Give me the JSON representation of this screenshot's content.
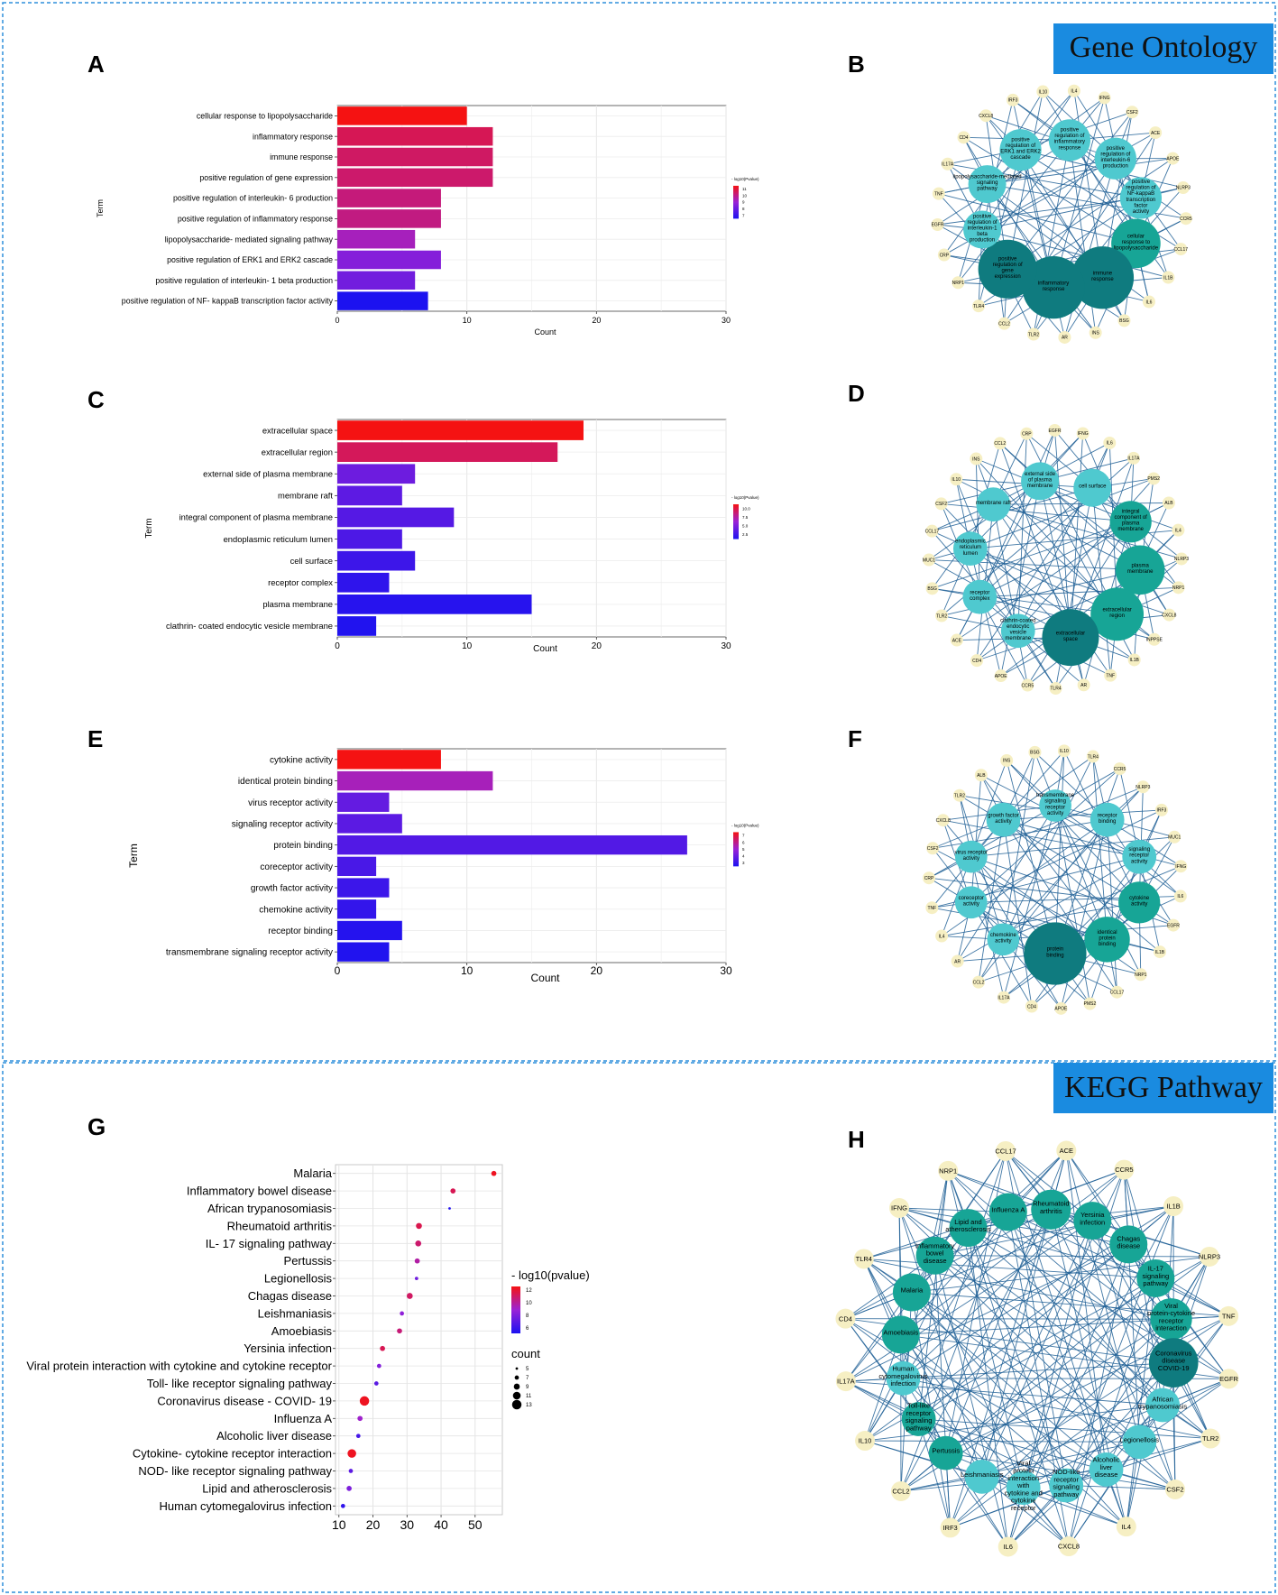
{
  "headers": {
    "go": "Gene Ontology",
    "kegg": "KEGG Pathway"
  },
  "colors": {
    "banner": "#1a8be0",
    "low": "#1c12f0",
    "mid": "#9a22d6",
    "high": "#f51212",
    "gene": "#f6efc3",
    "edge": "#1f5f95",
    "hubDark": "#0f7b7f",
    "hubMid": "#17a596",
    "hubLight": "#4fc9cf"
  },
  "panels": {
    "A": "A",
    "B": "B",
    "C": "C",
    "D": "D",
    "E": "E",
    "F": "F",
    "G": "G",
    "H": "H"
  },
  "chart_data": [
    {
      "id": "A",
      "type": "bar",
      "orientation": "horizontal",
      "xlabel": "Count",
      "ylabel": "Term",
      "xlim": [
        0,
        30
      ],
      "xticks": [
        0,
        10,
        20,
        30
      ],
      "categories": [
        "cellular response to lipopolysaccharide",
        "inflammatory response",
        "immune response",
        "positive regulation of gene expression",
        "positive regulation of interleukin- 6 production",
        "positive regulation of inflammatory response",
        "lipopolysaccharide- mediated signaling pathway",
        "positive regulation of ERK1 and ERK2 cascade",
        "positive regulation of interleukin- 1 beta production",
        "positive regulation of NF- kappaB transcription factor activity"
      ],
      "values": [
        10,
        12,
        12,
        12,
        8,
        8,
        6,
        8,
        6,
        7
      ],
      "neglog10p": [
        11.5,
        10.6,
        10.4,
        10.3,
        10.1,
        10.0,
        9.2,
        8.4,
        8.0,
        6.2
      ],
      "legend": {
        "title": "- log10(Pvalue)",
        "ticks": [
          "11",
          "10",
          "9",
          "8",
          "7"
        ],
        "min": 6.2,
        "max": 11.5
      }
    },
    {
      "id": "C",
      "type": "bar",
      "orientation": "horizontal",
      "xlabel": "Count",
      "ylabel": "Term",
      "xlim": [
        0,
        30
      ],
      "xticks": [
        0,
        10,
        20,
        30
      ],
      "categories": [
        "extracellular space",
        "extracellular region",
        "external side of plasma membrane",
        "membrane raft",
        "integral component of plasma membrane",
        "endoplasmic reticulum lumen",
        "cell surface",
        "receptor complex",
        "plasma membrane",
        "clathrin- coated endocytic vesicle membrane"
      ],
      "values": [
        19,
        17,
        6,
        5,
        9,
        5,
        6,
        4,
        15,
        3
      ],
      "neglog10p": [
        11.5,
        9.8,
        5.2,
        4.6,
        4.3,
        4.0,
        3.4,
        2.9,
        2.6,
        2.4
      ],
      "legend": {
        "title": "- log10(Pvalue)",
        "ticks": [
          "10.0",
          "7.5",
          "5.0",
          "2.5"
        ],
        "min": 2.2,
        "max": 11.5
      }
    },
    {
      "id": "E",
      "type": "bar",
      "orientation": "horizontal",
      "xlabel": "Count",
      "ylabel": "Term",
      "xlim": [
        0,
        30
      ],
      "xticks": [
        0,
        10,
        20,
        30
      ],
      "categories": [
        "cytokine activity",
        "identical protein binding",
        "virus receptor activity",
        "signaling receptor activity",
        "protein binding",
        "coreceptor activity",
        "growth factor activity",
        "chemokine activity",
        "receptor binding",
        "transmembrane signaling receptor activity"
      ],
      "values": [
        8,
        12,
        4,
        5,
        27,
        3,
        4,
        3,
        5,
        4
      ],
      "neglog10p": [
        7.6,
        5.2,
        3.6,
        3.4,
        3.2,
        3.0,
        2.7,
        2.5,
        2.2,
        2.1
      ],
      "legend": {
        "title": "- log10(Pvalue)",
        "ticks": [
          "7",
          "6",
          "5",
          "4",
          "3"
        ],
        "min": 2.0,
        "max": 7.6
      }
    },
    {
      "id": "G",
      "type": "scatter",
      "xlabel": "",
      "ylabel": "",
      "xlim": [
        9,
        58
      ],
      "xticks": [
        10,
        20,
        30,
        40,
        50
      ],
      "categories": [
        "Malaria",
        "Inflammatory bowel disease",
        "African trypanosomiasis",
        "Rheumatoid arthritis",
        "IL- 17 signaling pathway",
        "Pertussis",
        "Legionellosis",
        "Chagas disease",
        "Leishmaniasis",
        "Amoebiasis",
        "Yersinia infection",
        "Viral protein interaction with cytokine and cytokine receptor",
        "Toll- like receptor signaling pathway",
        "Coronavirus disease -  COVID- 19",
        "Influenza A",
        "Alcoholic liver disease",
        "Cytokine- cytokine receptor interaction",
        "NOD- like receptor signaling pathway",
        "Lipid and atherosclerosis",
        "Human cytomegalovirus infection"
      ],
      "x": [
        55.5,
        43.5,
        42.5,
        33.5,
        33.3,
        33.0,
        32.8,
        30.8,
        28.5,
        27.8,
        22.8,
        21.8,
        21.0,
        17.5,
        16.2,
        15.7,
        13.8,
        13.5,
        13.0,
        11.2
      ],
      "neglog10p": [
        12.5,
        11.5,
        5.2,
        11.6,
        11.0,
        9.9,
        7.6,
        11.2,
        8.6,
        10.8,
        11.5,
        8.2,
        6.9,
        12.5,
        9.1,
        6.3,
        12.5,
        7.0,
        8.0,
        5.6
      ],
      "count": [
        8,
        8,
        5,
        9,
        9,
        8,
        6,
        9,
        7,
        8,
        8,
        7,
        7,
        13,
        8,
        7,
        12,
        7,
        8,
        7
      ],
      "legend": {
        "color_title": "- log10(pvalue)",
        "color_ticks": [
          "12",
          "10",
          "8",
          "6"
        ],
        "min": 5.0,
        "max": 12.8,
        "size_title": "count",
        "size_ticks": [
          "5",
          "7",
          "9",
          "11",
          "13"
        ],
        "sizes": [
          5,
          7,
          9,
          11,
          13
        ]
      }
    }
  ],
  "networks": {
    "B": {
      "genes": [
        "IL4",
        "IFNG",
        "CSF2",
        "ACE",
        "APOE",
        "NLRP3",
        "CCR5",
        "CCL17",
        "IL1B",
        "IL6",
        "BSG",
        "INS",
        "AR",
        "TLR2",
        "CCL2",
        "TLR4",
        "NRP1",
        "CRP",
        "EGFR",
        "TNF",
        "IL17A",
        "CD4",
        "CXCL8",
        "IRF3",
        "IL10"
      ],
      "hubs": [
        {
          "label": "positive regulation of ERK1 and ERK2 cascade",
          "tone": "light",
          "size": 22
        },
        {
          "label": "positive regulation of inflammatory response",
          "tone": "light",
          "size": 22
        },
        {
          "label": "positive regulation of interleukin-6 production",
          "tone": "light",
          "size": 22
        },
        {
          "label": "positive regulation of NF-kappaB transcription factor activity",
          "tone": "light",
          "size": 22
        },
        {
          "label": "cellular response to lipopolysaccharide",
          "tone": "mid",
          "size": 26
        },
        {
          "label": "immune response",
          "tone": "dark",
          "size": 33
        },
        {
          "label": "inflammatory response",
          "tone": "dark",
          "size": 33
        },
        {
          "label": "positive regulation of gene expression",
          "tone": "dark",
          "size": 31
        },
        {
          "label": "positive regulation of interleukin-1 beta production",
          "tone": "light",
          "size": 20
        },
        {
          "label": "lipopolysaccharide-mediated signaling pathway",
          "tone": "light",
          "size": 20
        }
      ]
    },
    "D": {
      "genes": [
        "IFNG",
        "IL6",
        "IL17A",
        "PMS2",
        "ALB",
        "IL4",
        "NLRP3",
        "NRP1",
        "CXCL8",
        "INPPSE",
        "IL1B",
        "TNF",
        "AR",
        "TLR4",
        "CCR5",
        "APOE",
        "CD4",
        "ACE",
        "TLR2",
        "BSG",
        "MUC1",
        "CCL17",
        "CSF2",
        "IL10",
        "INS",
        "CCL2",
        "CRP",
        "EGFR"
      ],
      "hubs": [
        {
          "label": "external side of plasma membrane",
          "tone": "light",
          "size": 20
        },
        {
          "label": "cell surface",
          "tone": "light",
          "size": 20
        },
        {
          "label": "integral component of plasma membrane",
          "tone": "mid",
          "size": 22
        },
        {
          "label": "plasma membrane",
          "tone": "mid",
          "size": 26
        },
        {
          "label": "extracellular region",
          "tone": "mid",
          "size": 28
        },
        {
          "label": "extracellular space",
          "tone": "dark",
          "size": 30
        },
        {
          "label": "clathrin-coated endocytic vesicle membrane",
          "tone": "light",
          "size": 18
        },
        {
          "label": "receptor complex",
          "tone": "light",
          "size": 18
        },
        {
          "label": "endoplasmic reticulum lumen",
          "tone": "light",
          "size": 18
        },
        {
          "label": "membrane raft",
          "tone": "light",
          "size": 18
        }
      ]
    },
    "F": {
      "genes": [
        "IL10",
        "TLR4",
        "CCR5",
        "NLRP3",
        "IRF3",
        "MUC1",
        "IFNG",
        "IL6",
        "EGFR",
        "IL1B",
        "NRP1",
        "CCL17",
        "PMS2",
        "APOE",
        "CD4",
        "IL17A",
        "CCL2",
        "AR",
        "IL4",
        "TNF",
        "CRP",
        "CSF2",
        "CXCL8",
        "TLR2",
        "ALB",
        "INS",
        "BSG"
      ],
      "hubs": [
        {
          "label": "transmembrane signaling receptor activity",
          "tone": "light",
          "size": 17
        },
        {
          "label": "receptor binding",
          "tone": "light",
          "size": 18
        },
        {
          "label": "signaling receptor activity",
          "tone": "light",
          "size": 18
        },
        {
          "label": "cytokine activity",
          "tone": "mid",
          "size": 22
        },
        {
          "label": "identical protein binding",
          "tone": "mid",
          "size": 24
        },
        {
          "label": "protein binding",
          "tone": "dark",
          "size": 33
        },
        {
          "label": "chemokine activity",
          "tone": "light",
          "size": 17
        },
        {
          "label": "coreceptor activity",
          "tone": "light",
          "size": 17
        },
        {
          "label": "virus receptor activity",
          "tone": "light",
          "size": 17
        },
        {
          "label": "growth factor activity",
          "tone": "light",
          "size": 18
        }
      ]
    },
    "H": {
      "genes": [
        "ACE",
        "CCR5",
        "IL1B",
        "NLRP3",
        "TNF",
        "EGFR",
        "TLR2",
        "CSF2",
        "IL4",
        "CXCL8",
        "IL6",
        "IRF3",
        "CCL2",
        "IL10",
        "IL17A",
        "CD4",
        "TLR4",
        "IFNG",
        "NRP1",
        "CCL17"
      ],
      "hubs": [
        {
          "label": "Rheumatoid arthritis",
          "tone": "mid",
          "size": 21
        },
        {
          "label": "Yersinia infection",
          "tone": "mid",
          "size": 20
        },
        {
          "label": "Chagas disease",
          "tone": "mid",
          "size": 20
        },
        {
          "label": "IL-17 signaling pathway",
          "tone": "mid",
          "size": 20
        },
        {
          "label": "Viral protein-cytokine receptor interaction",
          "tone": "mid",
          "size": 22
        },
        {
          "label": "Coronavirus disease COVID-19",
          "tone": "dark",
          "size": 26
        },
        {
          "label": "African trypanosomiasis",
          "tone": "light",
          "size": 18
        },
        {
          "label": "Legionellosis",
          "tone": "light",
          "size": 18
        },
        {
          "label": "Alcoholic liver disease",
          "tone": "light",
          "size": 18
        },
        {
          "label": "NOD-like receptor signaling pathway",
          "tone": "light",
          "size": 18
        },
        {
          "label": "Viral protein interaction with cytokine and cytokine receptor",
          "tone": "light",
          "size": 18
        },
        {
          "label": "Leishmaniasis",
          "tone": "light",
          "size": 18
        },
        {
          "label": "Pertussis",
          "tone": "mid",
          "size": 18
        },
        {
          "label": "Toll-like receptor signaling pathway",
          "tone": "mid",
          "size": 18
        },
        {
          "label": "Human cytomegalovirus infection",
          "tone": "light",
          "size": 18
        },
        {
          "label": "Amoebiasis",
          "tone": "mid",
          "size": 20
        },
        {
          "label": "Malaria",
          "tone": "mid",
          "size": 20
        },
        {
          "label": "Inflammatory bowel disease",
          "tone": "mid",
          "size": 20
        },
        {
          "label": "Lipid and atherosclerosis",
          "tone": "mid",
          "size": 20
        },
        {
          "label": "Influenza A",
          "tone": "mid",
          "size": 20
        }
      ]
    }
  }
}
